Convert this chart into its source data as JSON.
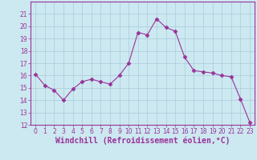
{
  "x": [
    0,
    1,
    2,
    3,
    4,
    5,
    6,
    7,
    8,
    9,
    10,
    11,
    12,
    13,
    14,
    15,
    16,
    17,
    18,
    19,
    20,
    21,
    22,
    23
  ],
  "y": [
    16.1,
    15.2,
    14.8,
    14.0,
    14.9,
    15.5,
    15.7,
    15.5,
    15.3,
    16.0,
    17.0,
    19.5,
    19.3,
    20.6,
    19.9,
    19.6,
    17.5,
    16.4,
    16.3,
    16.2,
    16.0,
    15.9,
    14.1,
    12.2
  ],
  "line_color": "#993399",
  "marker": "D",
  "marker_size": 2.5,
  "bg_color": "#cce8f0",
  "grid_color": "#aaccdc",
  "xlabel": "Windchill (Refroidissement éolien,°C)",
  "ylim": [
    12,
    22
  ],
  "xlim": [
    -0.5,
    23.5
  ],
  "yticks": [
    12,
    13,
    14,
    15,
    16,
    17,
    18,
    19,
    20,
    21
  ],
  "xticks": [
    0,
    1,
    2,
    3,
    4,
    5,
    6,
    7,
    8,
    9,
    10,
    11,
    12,
    13,
    14,
    15,
    16,
    17,
    18,
    19,
    20,
    21,
    22,
    23
  ],
  "tick_color": "#993399",
  "label_color": "#993399",
  "tick_fontsize": 5.5,
  "xlabel_fontsize": 7,
  "linewidth": 0.8
}
